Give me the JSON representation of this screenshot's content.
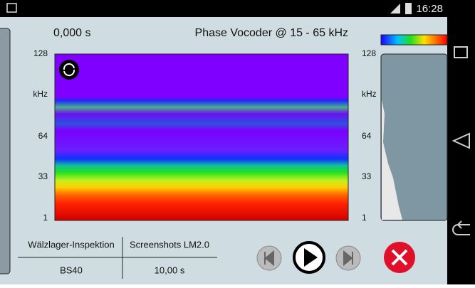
{
  "status_bar": {
    "time": "16:28"
  },
  "header": {
    "position": "0,000 s",
    "title": "Phase Vocoder @ 15 - 65 kHz"
  },
  "left_axis": {
    "ticks": [
      128,
      64,
      33,
      1
    ],
    "unit": "kHz"
  },
  "right_axis": {
    "ticks": [
      128,
      64,
      33,
      1
    ],
    "unit": "kHz"
  },
  "info_table": {
    "rows": [
      [
        "Wälzlager-Inspektion",
        "Screenshots LM2.0"
      ],
      [
        "BS40",
        "10,00 s"
      ]
    ]
  }
}
